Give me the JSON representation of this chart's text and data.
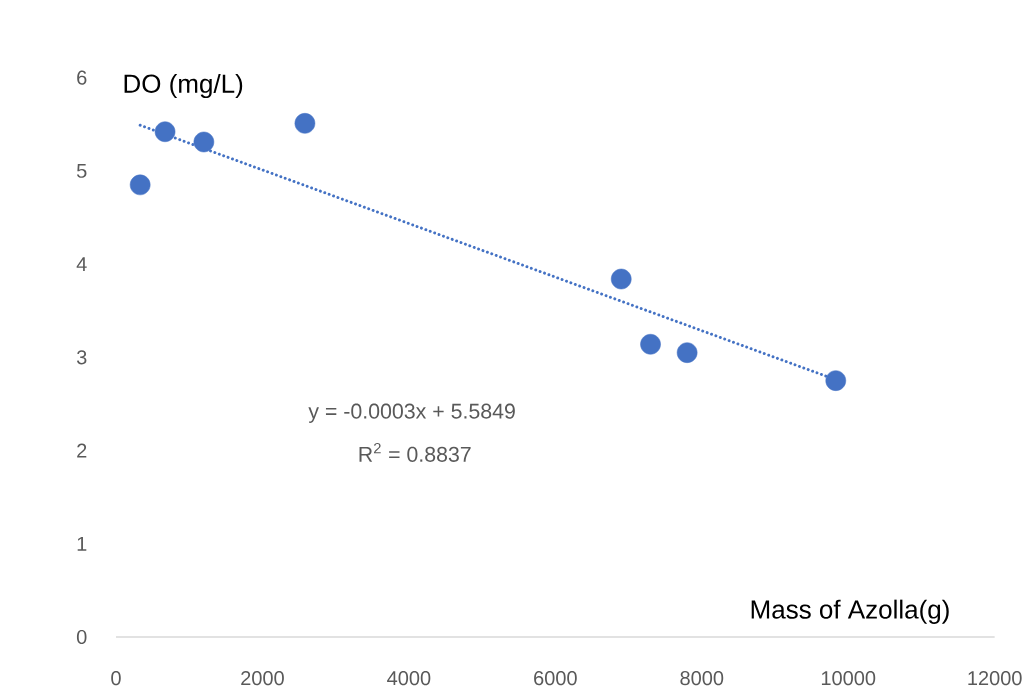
{
  "chart_data": {
    "type": "scatter",
    "xlabel": "Mass of Azolla(g)",
    "ylabel": "DO (mg/L)",
    "xlim": [
      0,
      12000
    ],
    "xticks": [
      0,
      2000,
      4000,
      6000,
      8000,
      10000,
      12000
    ],
    "ylim": [
      0,
      6
    ],
    "yticks": [
      0,
      1,
      2,
      3,
      4,
      5,
      6
    ],
    "grid": false,
    "marker": "circle",
    "series": [
      {
        "color": "#4472c4",
        "x": [
          330,
          670,
          1200,
          2580,
          6900,
          7300,
          7800,
          9830
        ],
        "values": [
          4.85,
          5.42,
          5.31,
          5.51,
          3.84,
          3.14,
          3.05,
          2.75
        ]
      },
      {
        "type": "line",
        "color": "#4472c4",
        "line_style": "dotted",
        "marker": "none",
        "x": [
          330,
          9830
        ],
        "values": [
          5.49,
          2.76
        ]
      }
    ],
    "annotations": [
      "y = -0.0003x + 5.5849",
      "R$^{2}$ = 0.8837"
    ]
  }
}
